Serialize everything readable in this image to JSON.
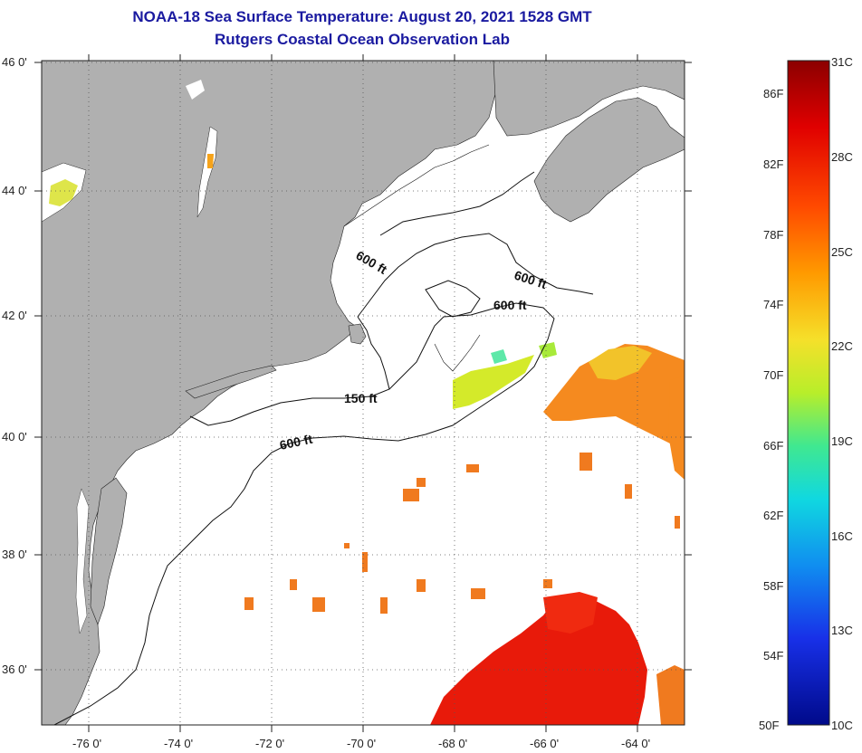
{
  "title": "NOAA-18 Sea Surface Temperature:  August 20, 2021 1528 GMT",
  "subtitle": "Rutgers Coastal Ocean Observation Lab",
  "axes": {
    "x_ticks": [
      "-76 0'",
      "-74 0'",
      "-72 0'",
      "-70 0'",
      "-68 0'",
      "-66 0'",
      "-64 0'"
    ],
    "y_ticks": [
      "46 0'",
      "44 0'",
      "42 0'",
      "40 0'",
      "38 0'",
      "36 0'"
    ]
  },
  "contours": {
    "labels": [
      "600 ft",
      "600 ft",
      "600 ft",
      "150 ft",
      "600 ft"
    ]
  },
  "colorbar": {
    "fahrenheit": [
      "86F",
      "82F",
      "78F",
      "74F",
      "70F",
      "66F",
      "62F",
      "58F",
      "54F",
      "50F"
    ],
    "celsius": [
      "31C",
      "28C",
      "25C",
      "22C",
      "19C",
      "16C",
      "13C",
      "10C"
    ]
  },
  "colors": {
    "land": "#b0b0b0",
    "ocean": "#ffffff",
    "title": "#1a1aa0",
    "warm": "#ff2a00",
    "hot": "#e80000"
  }
}
